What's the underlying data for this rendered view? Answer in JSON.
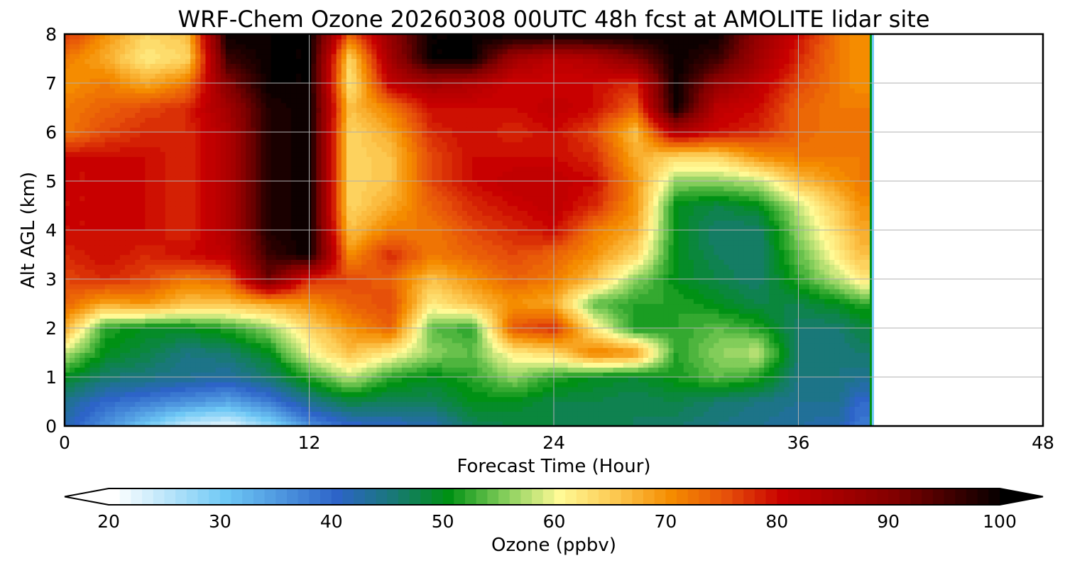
{
  "chart_data": {
    "type": "heatmap",
    "title": "WRF-Chem Ozone  20260308 00UTC 48h fcst at AMOLITE lidar site",
    "xlabel": "Forecast Time (Hour)",
    "ylabel": "Alt AGL (km)",
    "xlim": [
      0,
      48
    ],
    "ylim": [
      0,
      8
    ],
    "xticks": [
      "0",
      "12",
      "24",
      "36",
      "48"
    ],
    "yticks": [
      "0",
      "1",
      "2",
      "3",
      "4",
      "5",
      "6",
      "7",
      "8"
    ],
    "grid": true,
    "data_extent_hours": 39.5,
    "x": [
      0,
      2,
      4,
      6,
      8,
      10,
      12,
      14,
      16,
      18,
      20,
      22,
      24,
      26,
      28,
      30,
      32,
      34,
      36,
      38,
      39
    ],
    "y": [
      0,
      0.5,
      1,
      1.5,
      2,
      2.5,
      3,
      3.5,
      4,
      4.5,
      5,
      5.5,
      6,
      6.5,
      7,
      7.5,
      8
    ],
    "values_ppbv": [
      [
        42,
        36,
        30,
        24,
        22,
        28,
        36,
        40,
        41,
        42,
        47,
        48,
        48,
        47,
        47,
        46,
        45,
        44,
        43,
        42,
        38
      ],
      [
        44,
        40,
        38,
        36,
        34,
        38,
        44,
        48,
        47,
        47,
        50,
        50,
        48,
        48,
        47,
        48,
        46,
        45,
        44,
        44,
        40
      ],
      [
        50,
        46,
        45,
        44,
        43,
        46,
        52,
        58,
        52,
        50,
        52,
        56,
        52,
        50,
        49,
        51,
        54,
        52,
        45,
        45,
        44
      ],
      [
        58,
        50,
        48,
        45,
        46,
        50,
        60,
        66,
        62,
        56,
        54,
        62,
        64,
        72,
        70,
        52,
        56,
        58,
        46,
        45,
        46
      ],
      [
        68,
        52,
        50,
        50,
        52,
        56,
        64,
        70,
        74,
        54,
        52,
        75,
        78,
        62,
        51,
        52,
        54,
        52,
        46,
        46,
        48
      ],
      [
        74,
        68,
        70,
        66,
        66,
        68,
        70,
        74,
        76,
        62,
        66,
        70,
        68,
        54,
        52,
        52,
        50,
        48,
        48,
        50,
        52
      ],
      [
        76,
        78,
        76,
        72,
        74,
        92,
        78,
        76,
        74,
        66,
        70,
        74,
        72,
        66,
        56,
        50,
        48,
        46,
        52,
        58,
        62
      ],
      [
        78,
        80,
        78,
        80,
        82,
        96,
        100,
        70,
        78,
        72,
        74,
        76,
        74,
        70,
        64,
        50,
        47,
        46,
        54,
        62,
        66
      ],
      [
        80,
        80,
        80,
        78,
        84,
        98,
        100,
        66,
        72,
        72,
        76,
        78,
        80,
        72,
        68,
        50,
        46,
        46,
        56,
        64,
        68
      ],
      [
        80,
        80,
        80,
        78,
        84,
        98,
        100,
        64,
        68,
        74,
        78,
        80,
        82,
        78,
        70,
        50,
        48,
        50,
        58,
        66,
        70
      ],
      [
        80,
        80,
        80,
        78,
        84,
        98,
        100,
        64,
        66,
        76,
        80,
        82,
        82,
        80,
        70,
        56,
        56,
        58,
        66,
        70,
        72
      ],
      [
        80,
        80,
        80,
        78,
        84,
        98,
        100,
        64,
        66,
        76,
        80,
        80,
        80,
        78,
        68,
        64,
        64,
        70,
        72,
        72,
        72
      ],
      [
        72,
        76,
        78,
        78,
        84,
        98,
        100,
        64,
        68,
        78,
        80,
        78,
        80,
        76,
        66,
        84,
        80,
        78,
        74,
        72,
        72
      ],
      [
        72,
        74,
        76,
        78,
        86,
        98,
        100,
        66,
        72,
        80,
        80,
        80,
        82,
        80,
        74,
        100,
        82,
        80,
        74,
        72,
        72
      ],
      [
        70,
        72,
        68,
        72,
        90,
        100,
        100,
        62,
        82,
        86,
        84,
        80,
        80,
        80,
        78,
        100,
        88,
        82,
        76,
        72,
        70
      ],
      [
        72,
        68,
        62,
        64,
        96,
        100,
        100,
        64,
        86,
        100,
        100,
        86,
        82,
        84,
        90,
        100,
        96,
        86,
        78,
        72,
        70
      ],
      [
        78,
        70,
        64,
        66,
        100,
        100,
        100,
        74,
        88,
        100,
        100,
        100,
        100,
        100,
        100,
        100,
        100,
        88,
        80,
        72,
        70
      ]
    ],
    "colorbar": {
      "label": "Ozone  (ppbv)",
      "min": 20,
      "max": 100,
      "extend": "both",
      "ticks": [
        "20",
        "30",
        "40",
        "50",
        "60",
        "70",
        "80",
        "90",
        "100"
      ],
      "levels": 80
    }
  }
}
